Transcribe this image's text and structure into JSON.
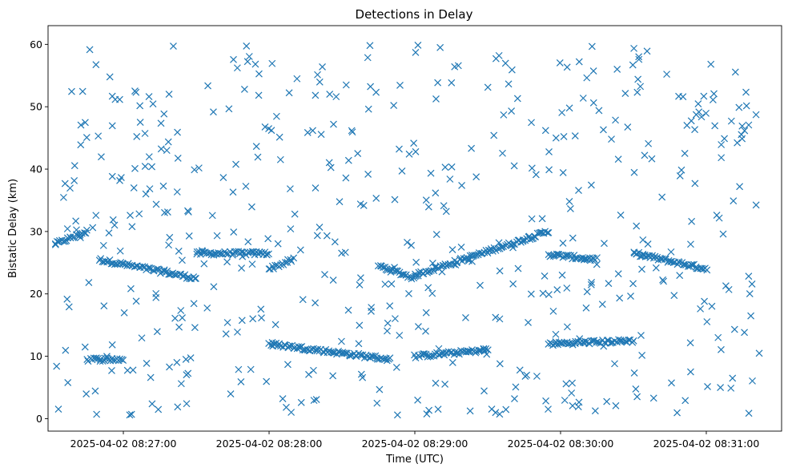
{
  "chart_data": {
    "type": "scatter",
    "title": "Detections in Delay",
    "xlabel": "Time (UTC)",
    "ylabel": "Bistatic Delay (km)",
    "marker": "x",
    "color": "#1f77b4",
    "grid": false,
    "x_ticks": [
      {
        "label": "2025-04-02 08:27:00",
        "t": "08:27:00"
      },
      {
        "label": "2025-04-02 08:28:00",
        "t": "08:28:00"
      },
      {
        "label": "2025-04-02 08:29:00",
        "t": "08:29:00"
      },
      {
        "label": "2025-04-02 08:30:00",
        "t": "08:30:00"
      },
      {
        "label": "2025-04-02 08:31:00",
        "t": "08:31:00"
      }
    ],
    "xlim": [
      "08:26:29",
      "08:31:31"
    ],
    "ylim": [
      -2,
      63
    ],
    "y_ticks": [
      0,
      10,
      20,
      30,
      40,
      50,
      60
    ],
    "tracks": [
      {
        "description": "ramp",
        "t_start": "08:26:32",
        "t_end": "08:26:45",
        "delay_start": 28.0,
        "delay_end": 30.0
      },
      {
        "description": "steady",
        "t_start": "08:26:50",
        "t_end": "08:27:30",
        "delay_start": 25.5,
        "delay_end": 22.5
      },
      {
        "description": "steady",
        "t_start": "08:27:30",
        "t_end": "08:28:00",
        "delay_start": 26.5,
        "delay_end": 26.5
      },
      {
        "description": "steady",
        "t_start": "08:28:00",
        "t_end": "08:28:10",
        "delay_start": 24.0,
        "delay_end": 25.5
      },
      {
        "description": "steady",
        "t_start": "08:28:45",
        "t_end": "08:29:00",
        "delay_start": 24.5,
        "delay_end": 22.5
      },
      {
        "description": "ramp",
        "t_start": "08:29:00",
        "t_end": "08:29:55",
        "delay_start": 23.0,
        "delay_end": 30.0
      },
      {
        "description": "steady",
        "t_start": "08:29:55",
        "t_end": "08:30:15",
        "delay_start": 26.3,
        "delay_end": 25.5
      },
      {
        "description": "steady",
        "t_start": "08:30:30",
        "t_end": "08:31:00",
        "delay_start": 26.5,
        "delay_end": 24.0
      },
      {
        "description": "lower",
        "t_start": "08:26:45",
        "t_end": "08:27:00",
        "delay_start": 9.5,
        "delay_end": 9.5
      },
      {
        "description": "lower",
        "t_start": "08:28:00",
        "t_end": "08:28:50",
        "delay_start": 12.0,
        "delay_end": 9.5
      },
      {
        "description": "lower",
        "t_start": "08:29:00",
        "t_end": "08:29:30",
        "delay_start": 10.0,
        "delay_end": 11.0
      },
      {
        "description": "lower",
        "t_start": "08:29:55",
        "t_end": "08:30:30",
        "delay_start": 12.0,
        "delay_end": 12.5
      }
    ],
    "clutter_count": 520
  }
}
